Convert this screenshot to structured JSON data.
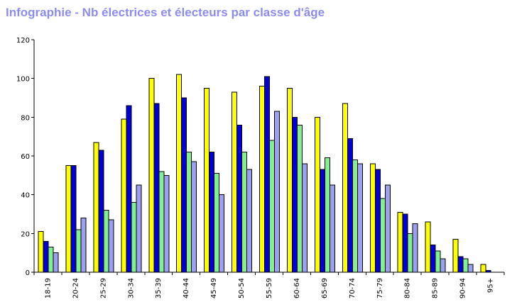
{
  "title": "Infographie - Nb électrices et électeurs par classe d'âge",
  "chart_data": {
    "type": "bar",
    "title": "Infographie - Nb électrices et électeurs par classe d'âge",
    "xlabel": "",
    "ylabel": "",
    "ylim": [
      0,
      120
    ],
    "yticks": [
      "0",
      "20",
      "40",
      "60",
      "80",
      "100",
      "120"
    ],
    "grid": false,
    "legend": "none",
    "categories": [
      "18-19",
      "20-24",
      "25-29",
      "30-34",
      "35-39",
      "40-44",
      "45-49",
      "50-54",
      "55-59",
      "60-64",
      "65-69",
      "70-74",
      "75-79",
      "80-84",
      "85-89",
      "90-94",
      "95+"
    ],
    "series": [
      {
        "color": "#ffff00",
        "values": [
          21,
          55,
          67,
          79,
          100,
          102,
          95,
          93,
          96,
          95,
          80,
          87,
          56,
          31,
          26,
          17,
          4
        ]
      },
      {
        "color": "#0000d8",
        "values": [
          16,
          55,
          63,
          86,
          87,
          90,
          62,
          76,
          101,
          80,
          53,
          69,
          53,
          30,
          14,
          8,
          1
        ]
      },
      {
        "color": "#80f090",
        "values": [
          13,
          22,
          32,
          36,
          52,
          62,
          51,
          62,
          68,
          76,
          59,
          58,
          38,
          20,
          11,
          7,
          0
        ]
      },
      {
        "color": "#9ca0f0",
        "values": [
          10,
          28,
          27,
          45,
          50,
          57,
          40,
          53,
          83,
          56,
          45,
          56,
          45,
          25,
          7,
          4,
          0
        ]
      }
    ]
  }
}
